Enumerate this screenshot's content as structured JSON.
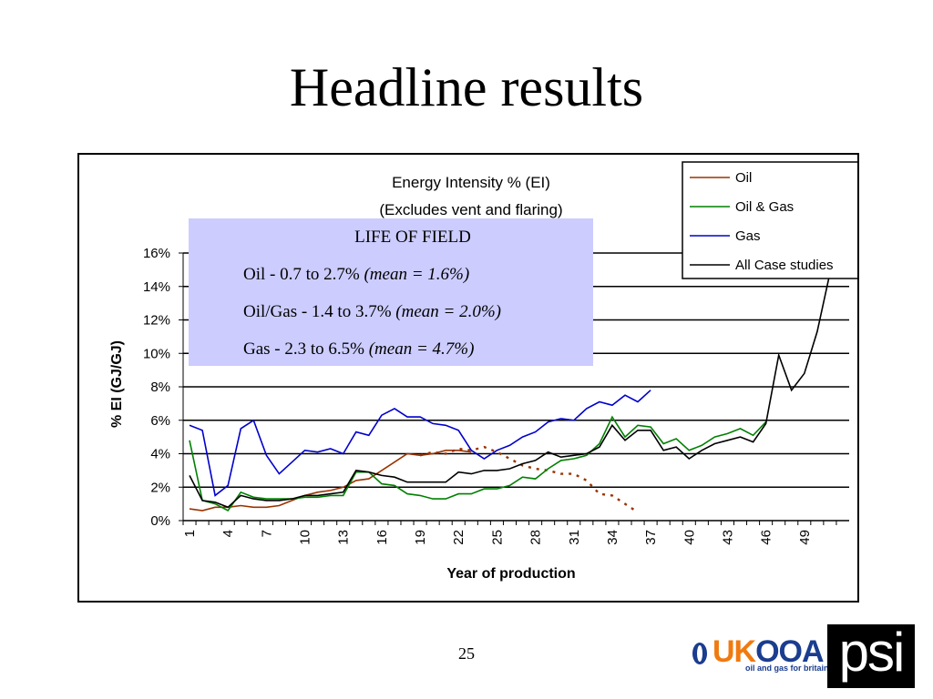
{
  "slide": {
    "title": "Headline results",
    "page_number": "25"
  },
  "logos": {
    "ukooa_uk": "UK",
    "ukooa_ooa": "OOA",
    "ukooa_tagline": "oil and gas for britain",
    "psi": "psi"
  },
  "annotation": {
    "heading": "LIFE OF FIELD",
    "lines": [
      {
        "text": "Oil - 0.7 to 2.7% ",
        "italic": "(mean = 1.6%)"
      },
      {
        "text": "Oil/Gas - 1.4 to 3.7% ",
        "italic": "(mean = 2.0%)"
      },
      {
        "text": "Gas - 2.3 to 6.5% ",
        "italic": "(mean = 4.7%)"
      }
    ],
    "background": "#ccccff"
  },
  "chart_data": {
    "type": "line",
    "title_lines": [
      "Energy Intensity % (EI)",
      "(Excludes vent and flaring)"
    ],
    "xlabel": "Year of production",
    "ylabel": "% EI (GJ/GJ)",
    "x_tick_labels": [
      "1",
      "4",
      "7",
      "10",
      "13",
      "16",
      "19",
      "22",
      "25",
      "28",
      "31",
      "34",
      "37",
      "40",
      "43",
      "46",
      "49"
    ],
    "x_range": [
      1,
      52
    ],
    "ylim": [
      0,
      16
    ],
    "y_tick_labels": [
      "0%",
      "2%",
      "4%",
      "6%",
      "8%",
      "10%",
      "12%",
      "14%",
      "16%"
    ],
    "grid": "horizontal",
    "legend_position": "top-right",
    "series": [
      {
        "name": "Oil",
        "color": "#993300",
        "x": [
          1,
          2,
          3,
          4,
          5,
          6,
          7,
          8,
          9,
          10,
          11,
          12,
          13,
          14,
          15,
          16,
          17,
          18,
          19,
          20,
          21,
          22,
          23
        ],
        "values": [
          0.7,
          0.6,
          0.8,
          0.8,
          0.9,
          0.8,
          0.8,
          0.9,
          1.2,
          1.5,
          1.7,
          1.8,
          2.0,
          2.4,
          2.5,
          3.0,
          3.5,
          4.0,
          3.9,
          4.0,
          4.2,
          4.2,
          4.1
        ]
      },
      {
        "name": "Oil (dotted continuation)",
        "legend": false,
        "dashed": true,
        "color": "#993300",
        "x": [
          19,
          20,
          21,
          22,
          23,
          24,
          25,
          26,
          27,
          28,
          29,
          30,
          31,
          32,
          33,
          34,
          35,
          36
        ],
        "values": [
          3.9,
          4.1,
          4.0,
          4.3,
          4.2,
          4.4,
          4.1,
          3.7,
          3.3,
          3.1,
          3.0,
          2.8,
          2.8,
          2.4,
          1.6,
          1.5,
          1.0,
          0.5
        ]
      },
      {
        "name": "Oil & Gas",
        "color": "#008000",
        "x": [
          1,
          2,
          3,
          4,
          5,
          6,
          7,
          8,
          9,
          10,
          11,
          12,
          13,
          14,
          15,
          16,
          17,
          18,
          19,
          20,
          21,
          22,
          23,
          24,
          25,
          26,
          27,
          28,
          29,
          30,
          31,
          32,
          33,
          34,
          35,
          36,
          37,
          38,
          39,
          40,
          41,
          42,
          43,
          44,
          45,
          46
        ],
        "values": [
          4.8,
          1.2,
          1.0,
          0.6,
          1.7,
          1.4,
          1.3,
          1.3,
          1.3,
          1.4,
          1.4,
          1.5,
          1.5,
          2.9,
          2.9,
          2.2,
          2.1,
          1.6,
          1.5,
          1.3,
          1.3,
          1.6,
          1.6,
          1.9,
          1.9,
          2.1,
          2.6,
          2.5,
          3.1,
          3.6,
          3.7,
          3.9,
          4.6,
          6.2,
          5.0,
          5.7,
          5.6,
          4.6,
          4.9,
          4.2,
          4.5,
          5.0,
          5.2,
          5.5,
          5.1,
          5.9
        ]
      },
      {
        "name": "Gas",
        "color": "#0000cc",
        "x": [
          1,
          2,
          3,
          4,
          5,
          6,
          7,
          8,
          9,
          10,
          11,
          12,
          13,
          14,
          15,
          16,
          17,
          18,
          19,
          20,
          21,
          22,
          23,
          24,
          25,
          26,
          27,
          28,
          29,
          30,
          31,
          32,
          33,
          34,
          35,
          36,
          37
        ],
        "values": [
          5.7,
          5.4,
          1.5,
          2.1,
          5.5,
          6.0,
          3.9,
          2.8,
          3.5,
          4.2,
          4.1,
          4.3,
          4.0,
          5.3,
          5.1,
          6.3,
          6.7,
          6.2,
          6.2,
          5.8,
          5.7,
          5.4,
          4.2,
          3.7,
          4.2,
          4.5,
          5.0,
          5.3,
          5.9,
          6.1,
          6.0,
          6.7,
          7.1,
          6.9,
          7.5,
          7.1,
          7.8
        ]
      },
      {
        "name": "All Case studies",
        "color": "#000000",
        "x": [
          1,
          2,
          3,
          4,
          5,
          6,
          7,
          8,
          9,
          10,
          11,
          12,
          13,
          14,
          15,
          16,
          17,
          18,
          19,
          20,
          21,
          22,
          23,
          24,
          25,
          26,
          27,
          28,
          29,
          30,
          31,
          32,
          33,
          34,
          35,
          36,
          37,
          38,
          39,
          40,
          41,
          42,
          43,
          44,
          45,
          46,
          47,
          48,
          49,
          50,
          51
        ],
        "values": [
          2.7,
          1.2,
          1.1,
          0.8,
          1.5,
          1.3,
          1.2,
          1.2,
          1.3,
          1.5,
          1.5,
          1.6,
          1.7,
          3.0,
          2.9,
          2.7,
          2.6,
          2.3,
          2.3,
          2.3,
          2.3,
          2.9,
          2.8,
          3.0,
          3.0,
          3.1,
          3.4,
          3.6,
          4.1,
          3.8,
          3.9,
          4.0,
          4.4,
          5.7,
          4.8,
          5.4,
          5.4,
          4.2,
          4.4,
          3.7,
          4.2,
          4.6,
          4.8,
          5.0,
          4.7,
          5.8,
          9.9,
          7.8,
          8.8,
          11.3,
          14.8
        ]
      }
    ]
  }
}
